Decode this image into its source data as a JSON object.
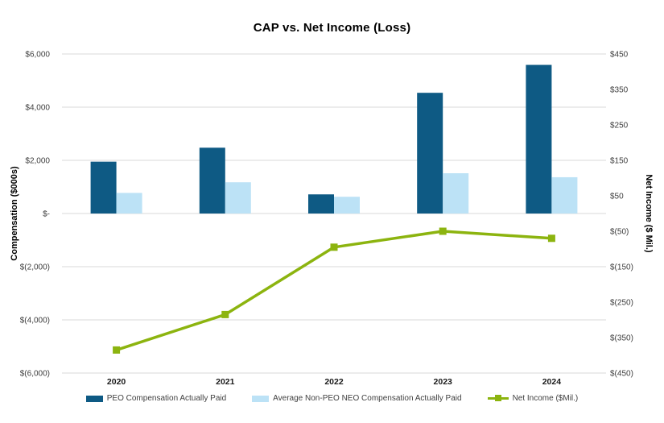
{
  "chart_data": {
    "type": "combo",
    "title": "CAP vs. Net Income (Loss)",
    "categories": [
      "2020",
      "2021",
      "2022",
      "2023",
      "2024"
    ],
    "series": [
      {
        "name": "PEO Compensation Actually Paid",
        "type": "bar",
        "axis": "left",
        "color": "#0E5A84",
        "values": [
          1950,
          2475,
          720,
          4540,
          5590
        ]
      },
      {
        "name": "Average Non-PEO NEO Compensation Actually Paid",
        "type": "bar",
        "axis": "left",
        "color": "#BCE2F6",
        "values": [
          775,
          1175,
          630,
          1515,
          1365
        ]
      },
      {
        "name": "Net Income ($Mil.)",
        "type": "line",
        "axis": "right",
        "color": "#8CB40F",
        "marker": "square",
        "values": [
          -385,
          -285,
          -95,
          -50,
          -70
        ]
      }
    ],
    "left_axis": {
      "label": "Compensation ($000s)",
      "min": -6000,
      "max": 6000,
      "tick_step": 2000,
      "ticks": [
        "$6,000",
        "$4,000",
        "$2,000",
        "$-",
        "$(2,000)",
        "$(4,000)",
        "$(6,000)"
      ]
    },
    "right_axis": {
      "label": "Net Income ($ Mil.)",
      "min": -450,
      "max": 450,
      "tick_step": 100,
      "ticks": [
        "$450",
        "$350",
        "$250",
        "$150",
        "$50",
        "$(50)",
        "$(150)",
        "$(250)",
        "$(350)",
        "$(450)"
      ]
    },
    "grid": "horizontal-only",
    "gridline_color": "#D9D9D9",
    "legend_position": "bottom"
  }
}
